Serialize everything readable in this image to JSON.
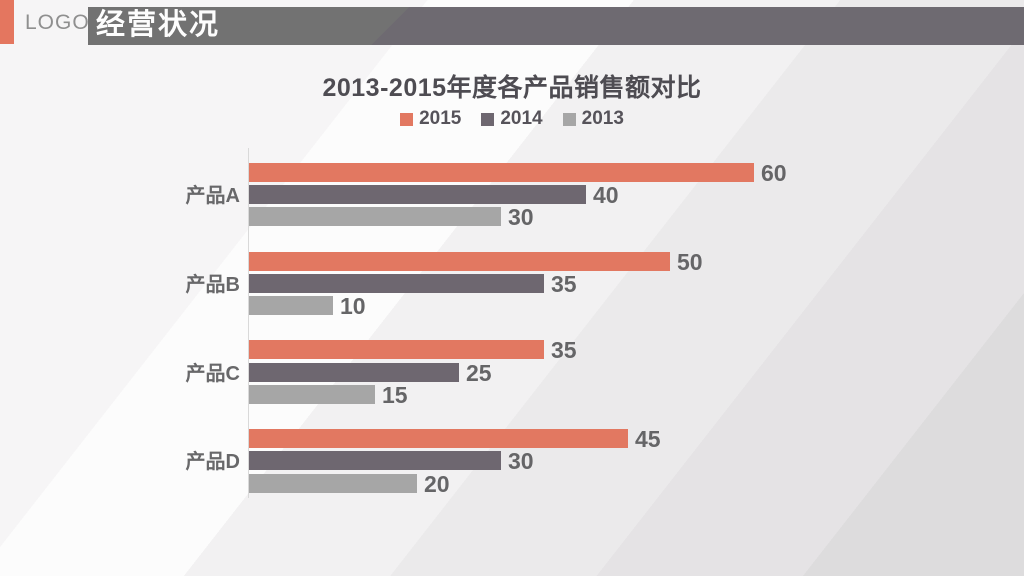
{
  "header": {
    "logo_text": "LOGO",
    "slide_title": "经营状况",
    "accent_color": "#e4765f",
    "banner_color": "#717171",
    "banner_text_color": "#ffffff"
  },
  "chart_data": {
    "type": "bar",
    "orientation": "horizontal",
    "title": "2013-2015年度各产品销售额对比",
    "categories": [
      "产品A",
      "产品B",
      "产品C",
      "产品D"
    ],
    "series": [
      {
        "name": "2015",
        "color": "#e27861",
        "values": [
          60,
          50,
          35,
          45
        ]
      },
      {
        "name": "2014",
        "color": "#6e6770",
        "values": [
          40,
          35,
          25,
          30
        ]
      },
      {
        "name": "2013",
        "color": "#a6a6a6",
        "values": [
          30,
          10,
          15,
          20
        ]
      }
    ],
    "xlim": [
      0,
      60
    ],
    "value_labels": true,
    "legend_position": "top",
    "legend_entries": [
      "2015",
      "2014",
      "2013"
    ],
    "gridlines": false,
    "axis_line_color": "#d9d9d9",
    "label_color": "#656567"
  }
}
